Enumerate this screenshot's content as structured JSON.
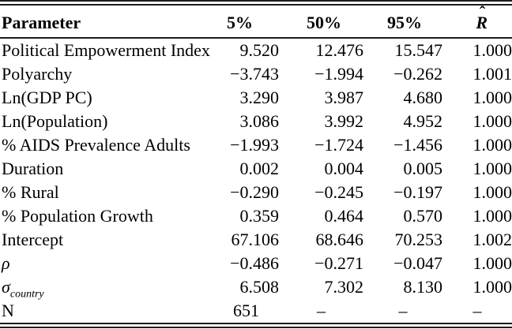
{
  "table": {
    "header": {
      "parameter": "Parameter",
      "p5": "5%",
      "p50": "50%",
      "p95": "95%",
      "rhat_base": "R",
      "rhat_hat": "ˆ"
    },
    "rows": [
      {
        "param": "Political Empowerment Index",
        "values": [
          "9.520",
          "12.476",
          "15.547",
          "1.000"
        ]
      },
      {
        "param": "Polyarchy",
        "values": [
          "−3.743",
          "−1.994",
          "−0.262",
          "1.001"
        ]
      },
      {
        "param": "Ln(GDP PC)",
        "values": [
          "3.290",
          "3.987",
          "4.680",
          "1.000"
        ]
      },
      {
        "param": "Ln(Population)",
        "values": [
          "3.086",
          "3.992",
          "4.952",
          "1.000"
        ]
      },
      {
        "param": "% AIDS Prevalence Adults",
        "values": [
          "−1.993",
          "−1.724",
          "−1.456",
          "1.000"
        ]
      },
      {
        "param": "Duration",
        "values": [
          "0.002",
          "0.004",
          "0.005",
          "1.000"
        ]
      },
      {
        "param": "% Rural",
        "values": [
          "−0.290",
          "−0.245",
          "−0.197",
          "1.000"
        ]
      },
      {
        "param": "% Population Growth",
        "values": [
          "0.359",
          "0.464",
          "0.570",
          "1.000"
        ]
      },
      {
        "param": "Intercept",
        "values": [
          "67.106",
          "68.646",
          "70.253",
          "1.002"
        ]
      },
      {
        "param": "ρ",
        "italic": true,
        "values": [
          "−0.486",
          "−0.271",
          "−0.047",
          "1.000"
        ]
      },
      {
        "param": "σ",
        "param_sub": "country",
        "italic": true,
        "values": [
          "6.508",
          "7.302",
          "8.130",
          "1.000"
        ]
      },
      {
        "param": "N",
        "centered": true,
        "values": [
          "651",
          "–",
          "–",
          "–"
        ]
      }
    ]
  },
  "colors": {
    "background": "#ffffff",
    "text": "#000000",
    "rule": "#1c1c1c"
  }
}
